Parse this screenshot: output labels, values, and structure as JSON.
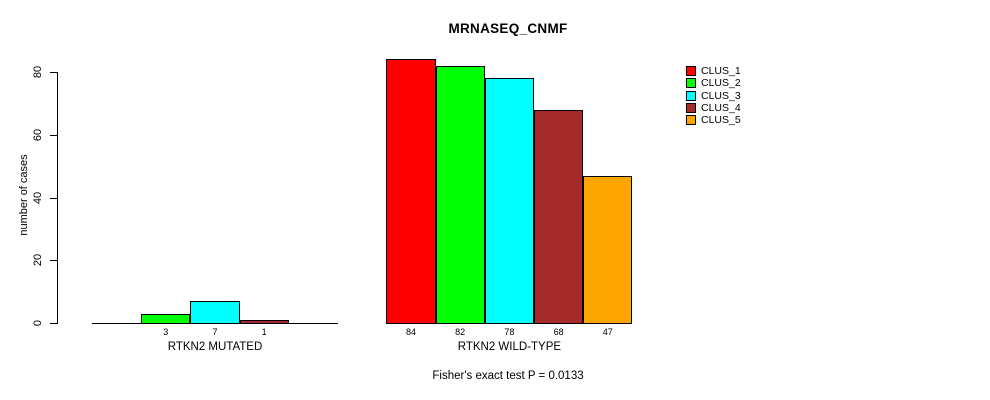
{
  "chart_data": {
    "type": "bar",
    "title": "MRNASEQ_CNMF",
    "ylabel": "number of cases",
    "xlabel": "",
    "ylim": [
      0,
      80
    ],
    "yticks": [
      0,
      20,
      40,
      60,
      80
    ],
    "grid": false,
    "legend_position": "right",
    "categories": [
      "RTKN2 MUTATED",
      "RTKN2 WILD-TYPE"
    ],
    "series": [
      {
        "name": "CLUS_1",
        "color": "#FF0000",
        "values": [
          0,
          84
        ]
      },
      {
        "name": "CLUS_2",
        "color": "#00FF00",
        "values": [
          3,
          82
        ]
      },
      {
        "name": "CLUS_3",
        "color": "#00FFFF",
        "values": [
          7,
          78
        ]
      },
      {
        "name": "CLUS_4",
        "color": "#A52A2A",
        "values": [
          1,
          68
        ]
      },
      {
        "name": "CLUS_5",
        "color": "#FFA500",
        "values": [
          0,
          47
        ]
      }
    ],
    "bar_value_labels": {
      "RTKN2 MUTATED": [
        "",
        "3",
        "7",
        "1",
        ""
      ],
      "RTKN2 WILD-TYPE": [
        "84",
        "82",
        "78",
        "68",
        "47"
      ]
    },
    "annotation": "Fisher's exact test P = 0.0133"
  },
  "colors": {
    "axis": "#000000",
    "text": "#000000",
    "background": "#FFFFFF"
  }
}
